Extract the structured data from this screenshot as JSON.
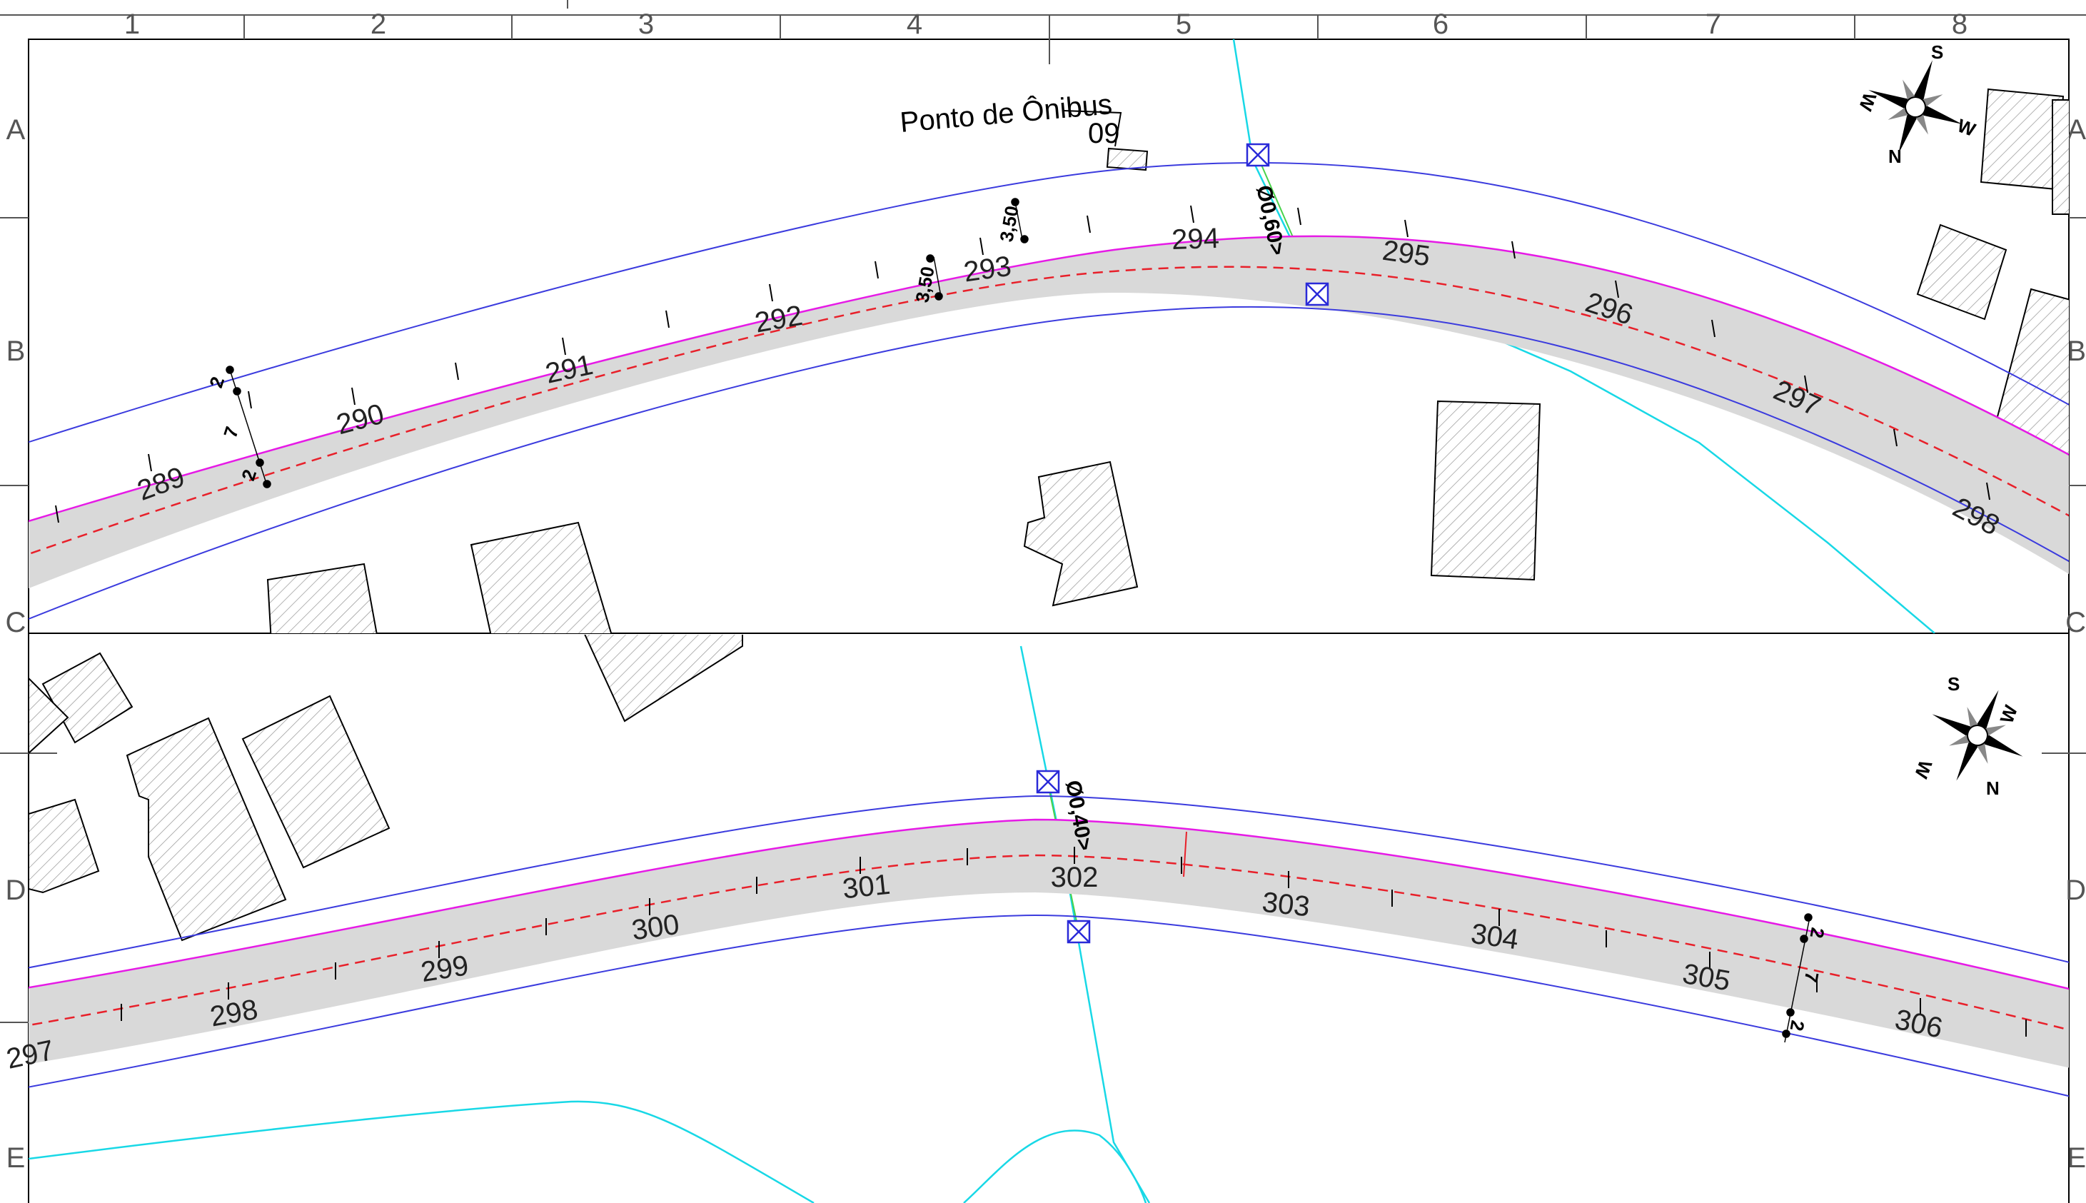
{
  "grid": {
    "columns": [
      "1",
      "2",
      "3",
      "4",
      "5",
      "6",
      "7",
      "8"
    ],
    "rows": [
      "A",
      "B",
      "C",
      "D",
      "E"
    ]
  },
  "panel_top": {
    "stations": [
      "289",
      "290",
      "291",
      "292",
      "293",
      "294",
      "295",
      "296",
      "297",
      "298"
    ],
    "dims": {
      "left_outer": "2",
      "left_inner": "7",
      "left_bottom": "2",
      "right_a": "3,50",
      "right_b": "3,50"
    },
    "bus_stop": {
      "label": "Ponto de Ônibus",
      "number": "09"
    },
    "pipe_label": "Ø0,60>"
  },
  "panel_bottom": {
    "stations": [
      "297",
      "298",
      "299",
      "300",
      "301",
      "302",
      "303",
      "304",
      "305",
      "306"
    ],
    "dims": {
      "right_outer": "2",
      "right_inner": "7",
      "right_bottom": "2"
    },
    "pipe_label": "Ø0,40>"
  },
  "compass": {
    "n": "N",
    "s": "S",
    "e": "E",
    "w": "W"
  },
  "colors": {
    "road_fill": "#d9d9d9",
    "axis": "#e8202a",
    "edge": "#e61ae6",
    "boundary": "#3b3bde",
    "water": "#18d8e6",
    "culvert": "#2a2ad8"
  }
}
